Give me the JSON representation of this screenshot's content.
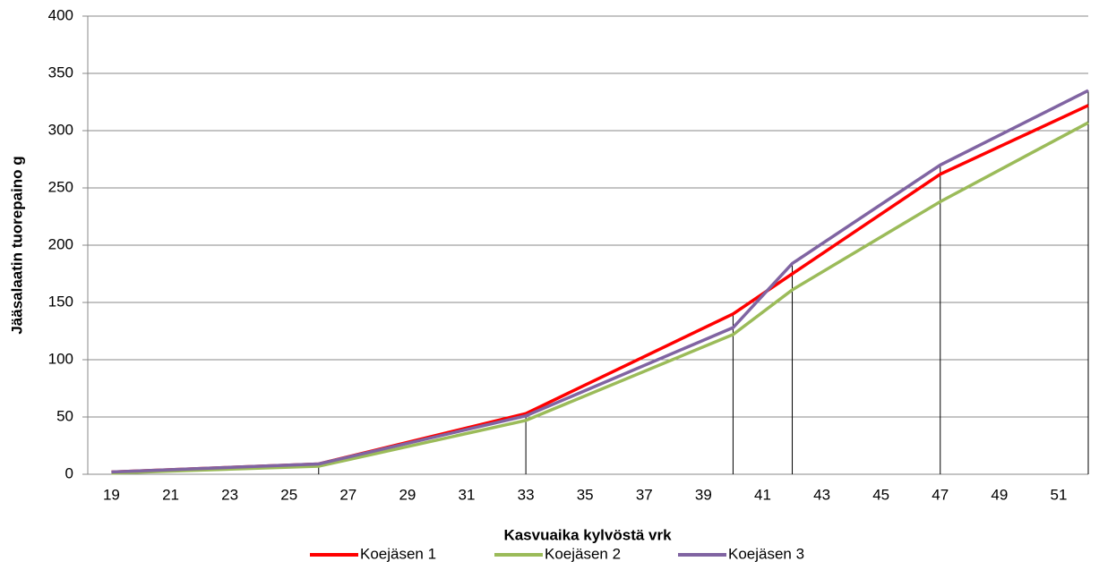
{
  "chart_data": {
    "type": "line",
    "x": [
      19,
      26,
      33,
      40,
      42,
      47,
      52
    ],
    "series": [
      {
        "name": "Koejäsen 1",
        "color": "#ff0000",
        "values": [
          2,
          9,
          53,
          140,
          175,
          262,
          322
        ]
      },
      {
        "name": "Koejäsen 2",
        "color": "#9bbb59",
        "values": [
          1,
          7,
          47,
          122,
          161,
          238,
          307
        ]
      },
      {
        "name": "Koejäsen 3",
        "color": "#8064a2",
        "values": [
          2,
          9,
          51,
          128,
          184,
          270,
          335
        ]
      }
    ],
    "xlabel": "Kasvuaika kylvöstä vrk",
    "ylabel": "Jääsalaatin tuorepaino g",
    "xlim": [
      18.2,
      52
    ],
    "xticks": [
      19,
      21,
      23,
      25,
      27,
      29,
      31,
      33,
      35,
      37,
      39,
      41,
      43,
      45,
      47,
      49,
      51
    ],
    "ylim": [
      0,
      400
    ],
    "yticks": [
      0,
      50,
      100,
      150,
      200,
      250,
      300,
      350,
      400
    ],
    "grid": true,
    "drop_lines": true,
    "legend": "bottom"
  }
}
